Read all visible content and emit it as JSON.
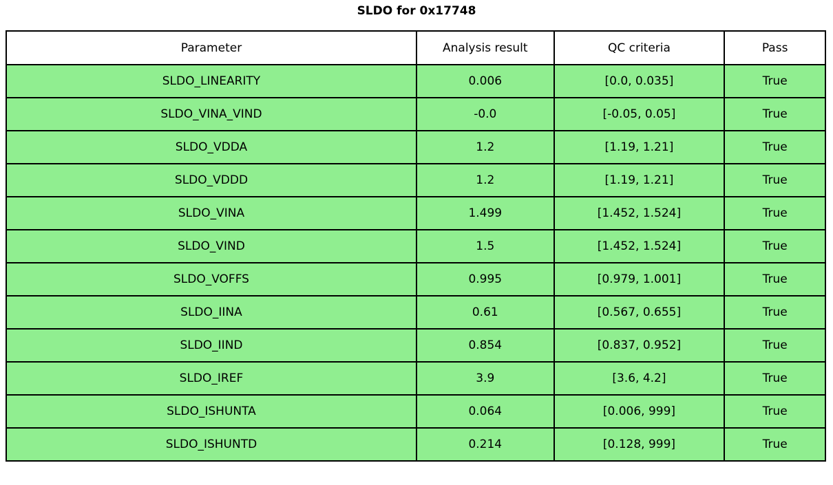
{
  "title": "SLDO for 0x17748",
  "table": {
    "headers": [
      "Parameter",
      "Analysis result",
      "QC criteria",
      "Pass"
    ],
    "rows": [
      {
        "parameter": "SLDO_LINEARITY",
        "result": "0.006",
        "criteria": "[0.0, 0.035]",
        "pass": "True"
      },
      {
        "parameter": "SLDO_VINA_VIND",
        "result": "-0.0",
        "criteria": "[-0.05, 0.05]",
        "pass": "True"
      },
      {
        "parameter": "SLDO_VDDA",
        "result": "1.2",
        "criteria": "[1.19, 1.21]",
        "pass": "True"
      },
      {
        "parameter": "SLDO_VDDD",
        "result": "1.2",
        "criteria": "[1.19, 1.21]",
        "pass": "True"
      },
      {
        "parameter": "SLDO_VINA",
        "result": "1.499",
        "criteria": "[1.452, 1.524]",
        "pass": "True"
      },
      {
        "parameter": "SLDO_VIND",
        "result": "1.5",
        "criteria": "[1.452, 1.524]",
        "pass": "True"
      },
      {
        "parameter": "SLDO_VOFFS",
        "result": "0.995",
        "criteria": "[0.979, 1.001]",
        "pass": "True"
      },
      {
        "parameter": "SLDO_IINA",
        "result": "0.61",
        "criteria": "[0.567, 0.655]",
        "pass": "True"
      },
      {
        "parameter": "SLDO_IIND",
        "result": "0.854",
        "criteria": "[0.837, 0.952]",
        "pass": "True"
      },
      {
        "parameter": "SLDO_IREF",
        "result": "3.9",
        "criteria": "[3.6, 4.2]",
        "pass": "True"
      },
      {
        "parameter": "SLDO_ISHUNTA",
        "result": "0.064",
        "criteria": "[0.006, 999]",
        "pass": "True"
      },
      {
        "parameter": "SLDO_ISHUNTD",
        "result": "0.214",
        "criteria": "[0.128, 999]",
        "pass": "True"
      }
    ]
  },
  "colors": {
    "pass_row_bg": "#90ee90",
    "header_bg": "#ffffff",
    "border": "#000000"
  }
}
